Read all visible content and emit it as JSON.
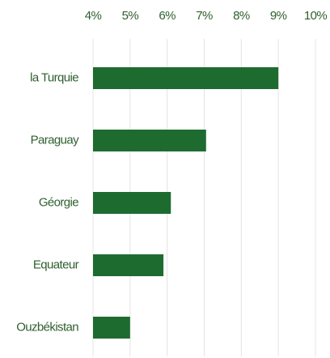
{
  "chart_data": {
    "type": "bar",
    "orientation": "horizontal",
    "categories": [
      "la Turquie",
      "Paraguay",
      "Géorgie",
      "Equateur",
      "Ouzbékistan"
    ],
    "values": [
      9.0,
      7.05,
      6.1,
      5.9,
      5.0
    ],
    "color": "#1e6b30",
    "xlim": [
      4,
      10
    ],
    "xticks": [
      {
        "value": 4,
        "label": "4%"
      },
      {
        "value": 5,
        "label": "5%"
      },
      {
        "value": 6,
        "label": "6%"
      },
      {
        "value": 7,
        "label": "7%"
      },
      {
        "value": 8,
        "label": "8%"
      },
      {
        "value": 9,
        "label": "9%"
      },
      {
        "value": 10,
        "label": "10%"
      }
    ],
    "grid": true
  }
}
